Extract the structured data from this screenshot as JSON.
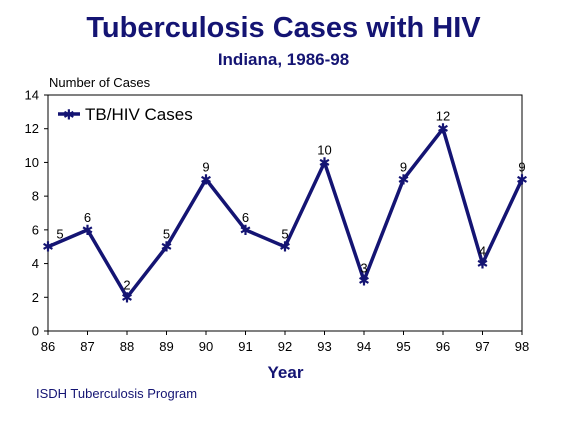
{
  "chart_data": {
    "type": "line",
    "title": "Tuberculosis Cases with HIV",
    "subtitle": "Indiana, 1986-98",
    "xlabel": "Year",
    "ylabel": "Number of Cases",
    "categories": [
      "86",
      "87",
      "88",
      "89",
      "90",
      "91",
      "92",
      "93",
      "94",
      "95",
      "96",
      "97",
      "98"
    ],
    "series": [
      {
        "name": "TB/HIV Cases",
        "values": [
          5,
          6,
          2,
          5,
          9,
          6,
          5,
          10,
          3,
          9,
          12,
          4,
          9
        ]
      }
    ],
    "ylim": [
      0,
      14
    ],
    "yticks": [
      "0",
      "2",
      "4",
      "6",
      "8",
      "10",
      "12",
      "14"
    ],
    "grid": false,
    "legend_position": "top-left",
    "series_color": "#141473"
  },
  "footer": {
    "source": "ISDH Tuberculosis Program"
  }
}
